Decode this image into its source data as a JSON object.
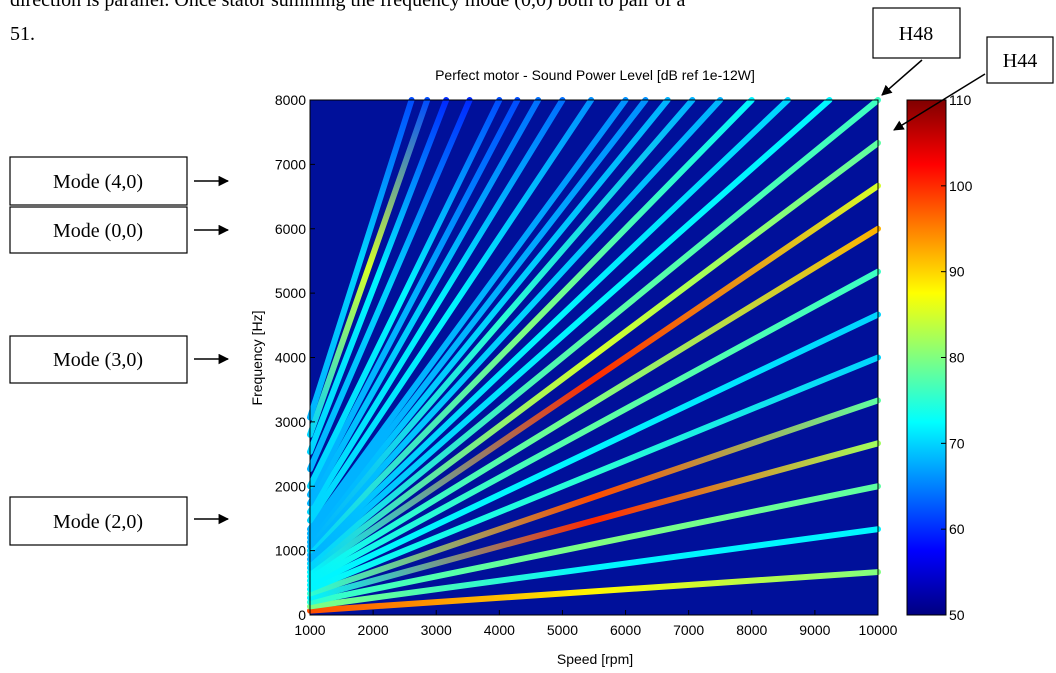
{
  "document": {
    "text_lines": [
      "direction is parallel. Once stator summing the frequency mode (0,0) both to pair of a",
      "51."
    ]
  },
  "chart_data": {
    "type": "campbell",
    "title": "Perfect motor - Sound Power Level [dB ref 1e-12W]",
    "xlabel": "Speed [rpm]",
    "ylabel": "Frequency [Hz]",
    "xlim": [
      1000,
      10000
    ],
    "ylim": [
      0,
      8000
    ],
    "xticks": [
      1000,
      2000,
      3000,
      4000,
      5000,
      6000,
      7000,
      8000,
      9000,
      10000
    ],
    "yticks": [
      0,
      1000,
      2000,
      3000,
      4000,
      5000,
      6000,
      7000,
      8000
    ],
    "clim": [
      50,
      110
    ],
    "cticks": [
      50,
      60,
      70,
      80,
      90,
      100,
      110
    ],
    "annotations": [
      "Mode (4,0)",
      "Mode (0,0)",
      "Mode (3,0)",
      "Mode (2,0)",
      "H48",
      "H44"
    ],
    "lines": [
      {
        "x": [
          1000,
          10000
        ],
        "values": [
          67,
          667
        ],
        "levels": [
          98,
          88,
          80
        ]
      },
      {
        "x": [
          1000,
          10000
        ],
        "values": [
          133,
          1333
        ],
        "levels": [
          80,
          72,
          72
        ]
      },
      {
        "x": [
          1000,
          10000
        ],
        "values": [
          200,
          2000
        ],
        "levels": [
          75,
          80,
          78
        ]
      },
      {
        "x": [
          1000,
          10000
        ],
        "values": [
          267,
          2667
        ],
        "levels": [
          72,
          100,
          82
        ]
      },
      {
        "x": [
          1000,
          10000
        ],
        "values": [
          333,
          3333
        ],
        "levels": [
          75,
          98,
          78
        ]
      },
      {
        "x": [
          1000,
          10000
        ],
        "values": [
          400,
          4000
        ],
        "levels": [
          72,
          75,
          70
        ]
      },
      {
        "x": [
          1000,
          10000
        ],
        "values": [
          467,
          4667
        ],
        "levels": [
          72,
          72,
          70
        ]
      },
      {
        "x": [
          1000,
          10000
        ],
        "values": [
          533,
          5333
        ],
        "levels": [
          72,
          78,
          76
        ]
      },
      {
        "x": [
          1000,
          10000
        ],
        "values": [
          600,
          6000
        ],
        "levels": [
          72,
          80,
          92
        ]
      },
      {
        "x": [
          1000,
          10000
        ],
        "values": [
          667,
          6667
        ],
        "levels": [
          72,
          100,
          85
        ]
      },
      {
        "x": [
          1000,
          10000
        ],
        "values": [
          733,
          7333
        ],
        "levels": [
          70,
          85,
          78
        ]
      },
      {
        "x": [
          1000,
          10000
        ],
        "values": [
          800,
          8000
        ],
        "levels": [
          70,
          78,
          76
        ]
      },
      {
        "x": [
          1000,
          9231
        ],
        "values": [
          867,
          8000
        ],
        "levels": [
          68,
          72,
          72
        ]
      },
      {
        "x": [
          1000,
          8571
        ],
        "values": [
          933,
          8000
        ],
        "levels": [
          68,
          72,
          70
        ]
      },
      {
        "x": [
          1000,
          8000
        ],
        "values": [
          1000,
          8000
        ],
        "levels": [
          70,
          80,
          72
        ]
      },
      {
        "x": [
          1000,
          7500
        ],
        "values": [
          1067,
          8000
        ],
        "levels": [
          68,
          70,
          68
        ]
      },
      {
        "x": [
          1000,
          7059
        ],
        "values": [
          1133,
          8000
        ],
        "levels": [
          68,
          75,
          68
        ]
      },
      {
        "x": [
          1000,
          6667
        ],
        "values": [
          1200,
          8000
        ],
        "levels": [
          68,
          70,
          68
        ]
      },
      {
        "x": [
          1000,
          6316
        ],
        "values": [
          1267,
          8000
        ],
        "levels": [
          68,
          68,
          66
        ]
      },
      {
        "x": [
          1000,
          6000
        ],
        "values": [
          1333,
          8000
        ],
        "levels": [
          68,
          68,
          66
        ]
      },
      {
        "x": [
          1000,
          5455
        ],
        "values": [
          1467,
          8000
        ],
        "levels": [
          70,
          72,
          66
        ]
      },
      {
        "x": [
          1000,
          5000
        ],
        "values": [
          1600,
          8000
        ],
        "levels": [
          70,
          72,
          64
        ]
      },
      {
        "x": [
          1000,
          4615
        ],
        "values": [
          1733,
          8000
        ],
        "levels": [
          68,
          70,
          64
        ]
      },
      {
        "x": [
          1000,
          4286
        ],
        "values": [
          1867,
          8000
        ],
        "levels": [
          68,
          68,
          62
        ]
      },
      {
        "x": [
          1000,
          4000
        ],
        "values": [
          2000,
          8000
        ],
        "levels": [
          70,
          72,
          62
        ]
      },
      {
        "x": [
          1000,
          3529
        ],
        "values": [
          2267,
          8000
        ],
        "levels": [
          68,
          70,
          60
        ]
      },
      {
        "x": [
          1000,
          3158
        ],
        "values": [
          2533,
          8000
        ],
        "levels": [
          70,
          72,
          60
        ]
      },
      {
        "x": [
          1000,
          2857
        ],
        "values": [
          2800,
          8000
        ],
        "levels": [
          70,
          85,
          62
        ]
      },
      {
        "x": [
          1000,
          2609
        ],
        "values": [
          3067,
          8000
        ],
        "levels": [
          68,
          70,
          62
        ]
      }
    ]
  }
}
